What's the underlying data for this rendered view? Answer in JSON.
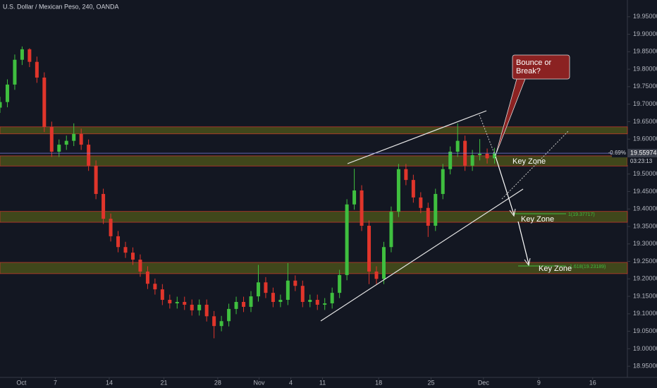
{
  "chart_data": {
    "type": "candlestick",
    "title": "U.S. Dollar / Mexican Peso, 240, OANDA",
    "up_color": "#3fbf3f",
    "down_color": "#e0352b",
    "xlim": [
      0,
      85
    ],
    "ylim": [
      18.918,
      19.998
    ],
    "xticks": [
      {
        "value": 2.9,
        "label": "Oct"
      },
      {
        "value": 7.5,
        "label": "7"
      },
      {
        "value": 14.8,
        "label": "14"
      },
      {
        "value": 22.2,
        "label": "21"
      },
      {
        "value": 29.5,
        "label": "28"
      },
      {
        "value": 35.1,
        "label": "Nov"
      },
      {
        "value": 39.4,
        "label": "4"
      },
      {
        "value": 43.7,
        "label": "11"
      },
      {
        "value": 51.3,
        "label": "18"
      },
      {
        "value": 58.4,
        "label": "25"
      },
      {
        "value": 65.5,
        "label": "Dec"
      },
      {
        "value": 73,
        "label": "9"
      },
      {
        "value": 80.3,
        "label": "16"
      }
    ],
    "yticks": [
      {
        "value": 18.95,
        "label": "18.95000"
      },
      {
        "value": 19.0,
        "label": "19.00000"
      },
      {
        "value": 19.05,
        "label": "19.05000"
      },
      {
        "value": 19.1,
        "label": "19.10000"
      },
      {
        "value": 19.15,
        "label": "19.15000"
      },
      {
        "value": 19.2,
        "label": "19.20000"
      },
      {
        "value": 19.25,
        "label": "19.25000"
      },
      {
        "value": 19.3,
        "label": "19.30000"
      },
      {
        "value": 19.35,
        "label": "19.35000"
      },
      {
        "value": 19.4,
        "label": "19.40000"
      },
      {
        "value": 19.45,
        "label": "19.45000"
      },
      {
        "value": 19.5,
        "label": "19.50000"
      },
      {
        "value": 19.6,
        "label": "19.60000"
      },
      {
        "value": 19.65,
        "label": "19.65000"
      },
      {
        "value": 19.7,
        "label": "19.70000"
      },
      {
        "value": 19.75,
        "label": "19.75000"
      },
      {
        "value": 19.8,
        "label": "19.80000"
      },
      {
        "value": 19.85,
        "label": "19.85000"
      },
      {
        "value": 19.9,
        "label": "19.90000"
      },
      {
        "value": 19.95,
        "label": "19.95000"
      }
    ],
    "candles": {
      "open": [
        19.69,
        19.706,
        19.756,
        19.827,
        19.857,
        19.821,
        19.776,
        19.635,
        19.564,
        19.584,
        19.595,
        19.615,
        19.584,
        19.524,
        19.443,
        19.372,
        19.322,
        19.291,
        19.275,
        19.255,
        19.221,
        19.186,
        19.17,
        19.14,
        19.13,
        19.134,
        19.126,
        19.11,
        19.126,
        19.093,
        19.065,
        19.079,
        19.114,
        19.134,
        19.12,
        19.15,
        19.19,
        19.16,
        19.134,
        19.14,
        19.195,
        19.18,
        19.134,
        19.14,
        19.126,
        19.13,
        19.16,
        19.211,
        19.413,
        19.453,
        19.352,
        19.221,
        19.2,
        19.291,
        19.392,
        19.514,
        19.483,
        19.433,
        19.403,
        19.352,
        19.443,
        19.514,
        19.564,
        19.595,
        19.524,
        19.554,
        19.558,
        19.545
      ],
      "high": [
        19.721,
        19.771,
        19.842,
        19.865,
        19.86,
        19.836,
        19.791,
        19.65,
        19.599,
        19.61,
        19.645,
        19.63,
        19.599,
        19.539,
        19.458,
        19.387,
        19.337,
        19.306,
        19.29,
        19.27,
        19.236,
        19.201,
        19.185,
        19.155,
        19.149,
        19.149,
        19.141,
        19.141,
        19.141,
        19.108,
        19.094,
        19.129,
        19.149,
        19.149,
        19.165,
        19.24,
        19.205,
        19.175,
        19.155,
        19.245,
        19.21,
        19.195,
        19.155,
        19.155,
        19.145,
        19.175,
        19.226,
        19.428,
        19.515,
        19.468,
        19.367,
        19.236,
        19.306,
        19.407,
        19.529,
        19.529,
        19.498,
        19.448,
        19.418,
        19.458,
        19.529,
        19.579,
        19.645,
        19.61,
        19.569,
        19.6,
        19.573,
        19.575
      ],
      "low": [
        19.675,
        19.691,
        19.741,
        19.812,
        19.806,
        19.761,
        19.62,
        19.549,
        19.549,
        19.569,
        19.58,
        19.569,
        19.509,
        19.428,
        19.357,
        19.307,
        19.276,
        19.26,
        19.24,
        19.206,
        19.171,
        19.155,
        19.125,
        19.115,
        19.115,
        19.111,
        19.095,
        19.095,
        19.078,
        19.03,
        19.05,
        19.064,
        19.099,
        19.105,
        19.105,
        19.135,
        19.145,
        19.119,
        19.119,
        19.125,
        19.165,
        19.119,
        19.119,
        19.111,
        19.111,
        19.115,
        19.145,
        19.196,
        19.398,
        19.337,
        19.185,
        19.185,
        19.185,
        19.276,
        19.377,
        19.468,
        19.418,
        19.388,
        19.32,
        19.337,
        19.428,
        19.499,
        19.549,
        19.509,
        19.509,
        19.539,
        19.53,
        19.53
      ],
      "close": [
        19.706,
        19.756,
        19.827,
        19.857,
        19.821,
        19.776,
        19.635,
        19.564,
        19.584,
        19.595,
        19.615,
        19.584,
        19.524,
        19.443,
        19.372,
        19.322,
        19.291,
        19.275,
        19.255,
        19.221,
        19.186,
        19.17,
        19.14,
        19.13,
        19.134,
        19.126,
        19.11,
        19.126,
        19.093,
        19.065,
        19.079,
        19.114,
        19.134,
        19.12,
        19.15,
        19.19,
        19.16,
        19.134,
        19.14,
        19.195,
        19.18,
        19.134,
        19.14,
        19.126,
        19.13,
        19.16,
        19.211,
        19.413,
        19.453,
        19.352,
        19.221,
        19.2,
        19.291,
        19.392,
        19.514,
        19.483,
        19.433,
        19.403,
        19.352,
        19.443,
        19.514,
        19.564,
        19.595,
        19.524,
        19.554,
        19.558,
        19.545,
        19.56
      ]
    },
    "zones": [
      {
        "low": 19.615,
        "high": 19.635
      },
      {
        "low": 19.523,
        "high": 19.552
      },
      {
        "low": 19.362,
        "high": 19.393
      },
      {
        "low": 19.215,
        "high": 19.247
      }
    ],
    "zone_label": "Key Zone",
    "callout": [
      "Bounce or",
      "Break?"
    ],
    "fib_labels": [
      "1(19.37717)",
      "1.618(19.23189)"
    ],
    "last_price": {
      "value": 19.55974,
      "label": "19.55974"
    },
    "change": "-0.69%",
    "countdown": "03:23:13"
  }
}
